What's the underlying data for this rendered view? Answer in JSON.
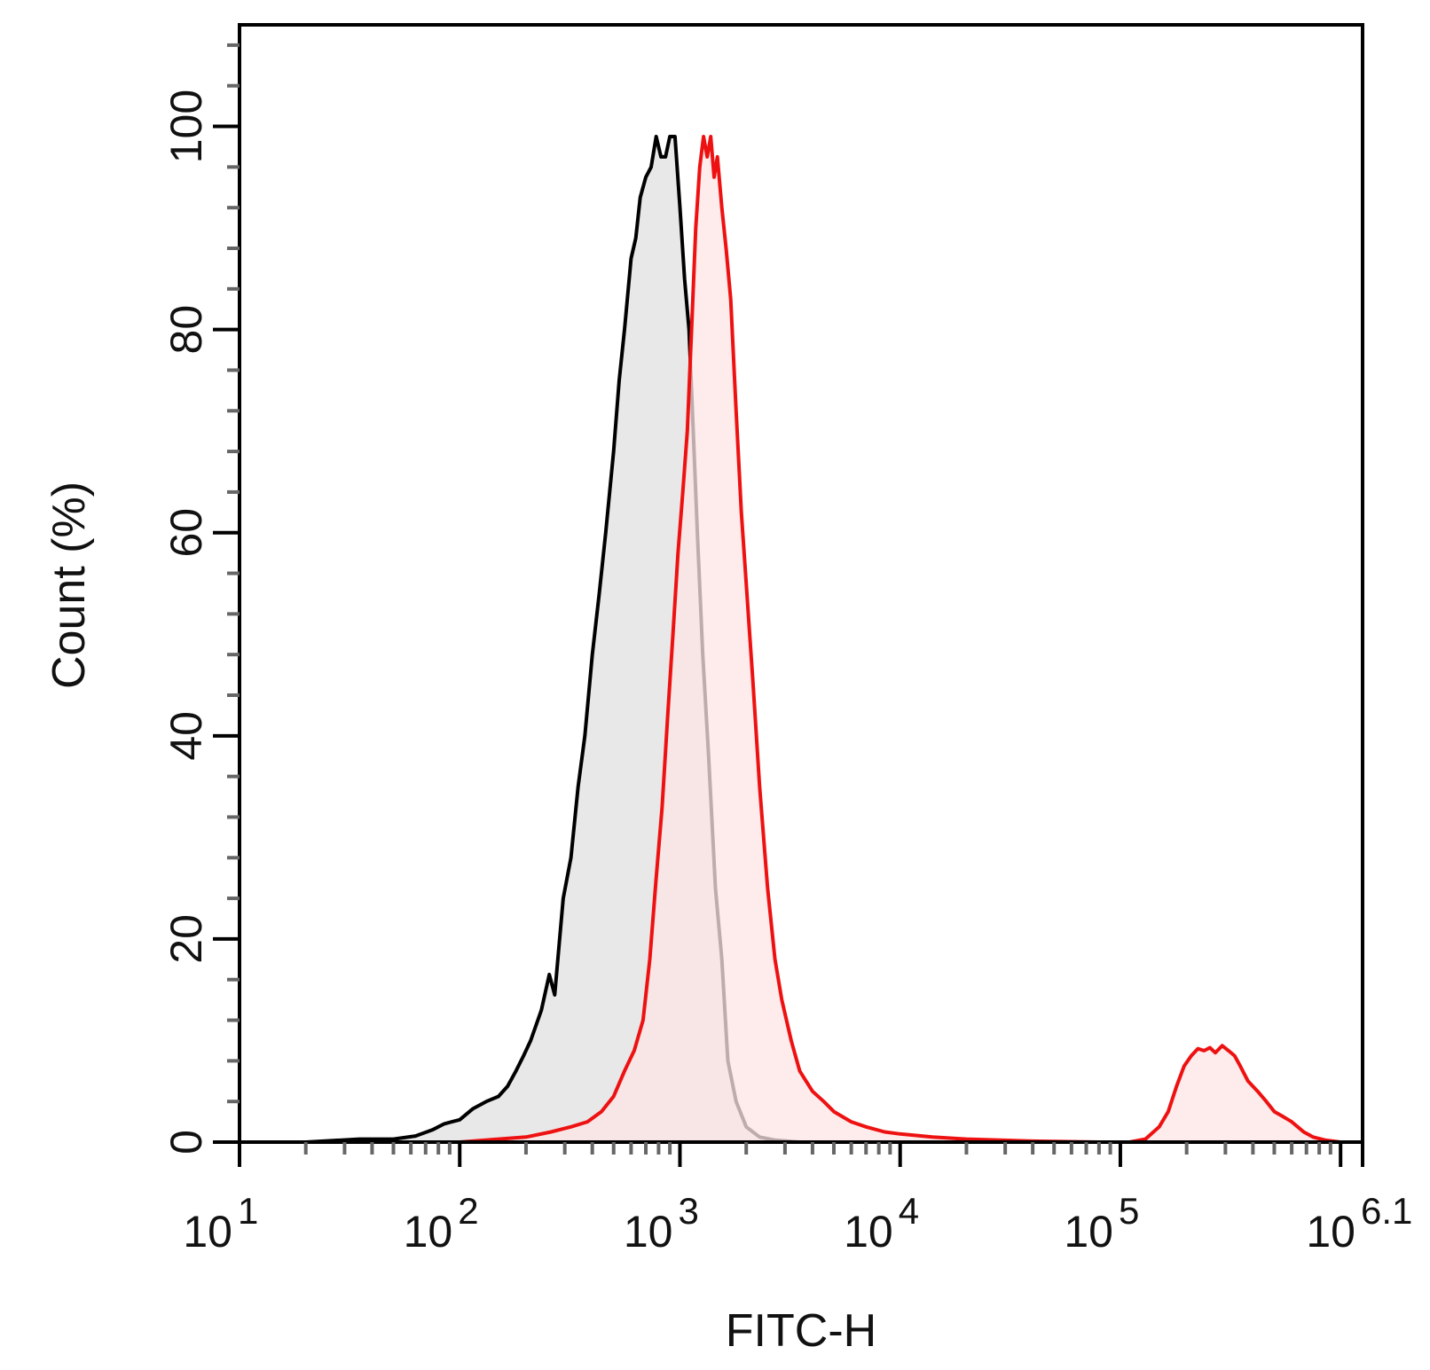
{
  "chart_data": {
    "type": "area",
    "xlabel": "FITC-H",
    "ylabel": "Count  (%)",
    "x_scale": "log10",
    "xlim": [
      10,
      1258925
    ],
    "ylim": [
      0,
      110
    ],
    "x_ticks": [
      {
        "base": "10",
        "exp": "1",
        "value": 10
      },
      {
        "base": "10",
        "exp": "2",
        "value": 100
      },
      {
        "base": "10",
        "exp": "3",
        "value": 1000
      },
      {
        "base": "10",
        "exp": "4",
        "value": 10000
      },
      {
        "base": "10",
        "exp": "5",
        "value": 100000
      },
      {
        "base": "10",
        "exp": "6.1",
        "value": 1258925
      }
    ],
    "y_ticks": [
      0,
      20,
      40,
      60,
      80,
      100
    ],
    "grid": false,
    "legend": "none",
    "series": [
      {
        "color": "#000000",
        "fill": "#e8e8e8",
        "points": [
          [
            10,
            0
          ],
          [
            20,
            0
          ],
          [
            35,
            0.3
          ],
          [
            50,
            0.3
          ],
          [
            63,
            0.6
          ],
          [
            75,
            1.2
          ],
          [
            85,
            1.8
          ],
          [
            100,
            2.2
          ],
          [
            115,
            3.3
          ],
          [
            132,
            4
          ],
          [
            150,
            4.5
          ],
          [
            165,
            5.5
          ],
          [
            180,
            7
          ],
          [
            195,
            8.5
          ],
          [
            210,
            10
          ],
          [
            235,
            13
          ],
          [
            255,
            16.5
          ],
          [
            270,
            14.5
          ],
          [
            295,
            24
          ],
          [
            320,
            28
          ],
          [
            345,
            35
          ],
          [
            370,
            40
          ],
          [
            400,
            48
          ],
          [
            430,
            54
          ],
          [
            460,
            60
          ],
          [
            500,
            68
          ],
          [
            530,
            75
          ],
          [
            560,
            80
          ],
          [
            600,
            87
          ],
          [
            630,
            89
          ],
          [
            660,
            93
          ],
          [
            700,
            95
          ],
          [
            740,
            96
          ],
          [
            780,
            99
          ],
          [
            820,
            97
          ],
          [
            860,
            97
          ],
          [
            900,
            99
          ],
          [
            950,
            99
          ],
          [
            1000,
            92
          ],
          [
            1050,
            85
          ],
          [
            1100,
            80
          ],
          [
            1150,
            70
          ],
          [
            1200,
            60
          ],
          [
            1270,
            48
          ],
          [
            1350,
            38
          ],
          [
            1450,
            25
          ],
          [
            1550,
            18
          ],
          [
            1650,
            8
          ],
          [
            1800,
            4
          ],
          [
            2000,
            1.5
          ],
          [
            2300,
            0.5
          ],
          [
            2700,
            0.2
          ],
          [
            3500,
            0
          ],
          [
            10000,
            0
          ],
          [
            100000,
            0
          ],
          [
            1258925,
            0
          ]
        ]
      },
      {
        "color": "#ee1111",
        "fill": "#fde6e6",
        "points": [
          [
            10,
            0
          ],
          [
            100,
            0
          ],
          [
            150,
            0.3
          ],
          [
            200,
            0.5
          ],
          [
            260,
            1
          ],
          [
            320,
            1.5
          ],
          [
            380,
            2
          ],
          [
            440,
            3
          ],
          [
            500,
            4.5
          ],
          [
            560,
            7
          ],
          [
            620,
            9
          ],
          [
            680,
            12
          ],
          [
            730,
            18
          ],
          [
            780,
            26
          ],
          [
            830,
            33
          ],
          [
            880,
            42
          ],
          [
            930,
            50
          ],
          [
            980,
            58
          ],
          [
            1030,
            64
          ],
          [
            1080,
            70
          ],
          [
            1130,
            80
          ],
          [
            1180,
            90
          ],
          [
            1230,
            96
          ],
          [
            1280,
            99
          ],
          [
            1330,
            97
          ],
          [
            1380,
            99
          ],
          [
            1430,
            95
          ],
          [
            1480,
            97
          ],
          [
            1550,
            92
          ],
          [
            1620,
            88
          ],
          [
            1700,
            83
          ],
          [
            1800,
            72
          ],
          [
            1900,
            62
          ],
          [
            2000,
            55
          ],
          [
            2150,
            45
          ],
          [
            2300,
            35
          ],
          [
            2500,
            25
          ],
          [
            2700,
            18
          ],
          [
            2900,
            14
          ],
          [
            3200,
            10
          ],
          [
            3500,
            7
          ],
          [
            4000,
            5
          ],
          [
            4500,
            4
          ],
          [
            5000,
            3
          ],
          [
            6000,
            2
          ],
          [
            7000,
            1.5
          ],
          [
            8500,
            1
          ],
          [
            10000,
            0.8
          ],
          [
            14000,
            0.5
          ],
          [
            20000,
            0.3
          ],
          [
            40000,
            0.1
          ],
          [
            80000,
            0
          ],
          [
            110000,
            0
          ],
          [
            130000,
            0.3
          ],
          [
            150000,
            1.5
          ],
          [
            165000,
            3
          ],
          [
            180000,
            5.5
          ],
          [
            195000,
            7.5
          ],
          [
            210000,
            8.5
          ],
          [
            225000,
            9.2
          ],
          [
            240000,
            9
          ],
          [
            255000,
            9.3
          ],
          [
            270000,
            8.8
          ],
          [
            290000,
            9.5
          ],
          [
            310000,
            9
          ],
          [
            330000,
            8.5
          ],
          [
            350000,
            7.5
          ],
          [
            380000,
            6
          ],
          [
            420000,
            5
          ],
          [
            460000,
            4
          ],
          [
            500000,
            3
          ],
          [
            550000,
            2.5
          ],
          [
            600000,
            2
          ],
          [
            680000,
            1
          ],
          [
            750000,
            0.5
          ],
          [
            850000,
            0.2
          ],
          [
            1000000,
            0
          ],
          [
            1258925,
            0
          ]
        ]
      }
    ]
  }
}
